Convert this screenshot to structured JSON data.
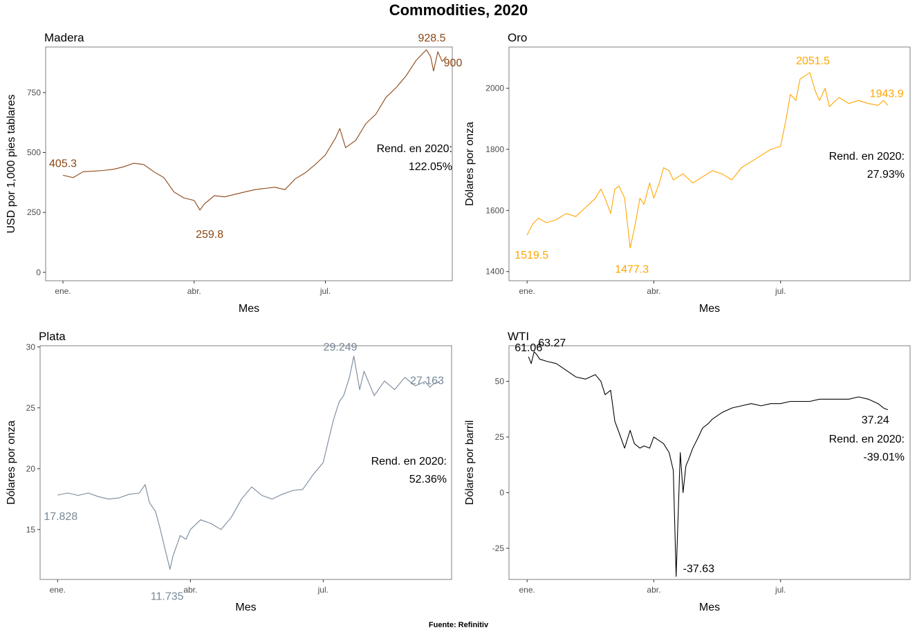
{
  "title": "Commodities, 2020",
  "source": "Fuente: Refinitiv",
  "chart_data": [
    {
      "type": "line",
      "title": "Madera",
      "xlabel": "Mes",
      "ylabel": "USD por 1,000 pies tablares",
      "color": "#8B4513",
      "x_ticks": [
        {
          "label": "ene.",
          "day": 0
        },
        {
          "label": "abr.",
          "day": 91
        },
        {
          "label": "jul.",
          "day": 182
        }
      ],
      "xlim": [
        -12,
        270
      ],
      "ylim": [
        -35,
        940
      ],
      "y_ticks": [
        0,
        250,
        500,
        750
      ],
      "series": [
        {
          "x": [
            0,
            7,
            14,
            21,
            28,
            35,
            42,
            49,
            56,
            63,
            70,
            77,
            84,
            91,
            95,
            98,
            105,
            112,
            119,
            126,
            133,
            140,
            147,
            154,
            161,
            168,
            175,
            182,
            189,
            192,
            196,
            203,
            208,
            210,
            217,
            224,
            231,
            238,
            245,
            252,
            255,
            257,
            260,
            263,
            266
          ],
          "values": [
            405.3,
            395,
            420,
            422,
            425,
            430,
            440,
            455,
            450,
            420,
            395,
            335,
            310,
            300,
            259.8,
            285,
            320,
            315,
            325,
            335,
            345,
            350,
            355,
            345,
            390,
            415,
            450,
            490,
            560,
            600,
            520,
            550,
            600,
            620,
            660,
            730,
            770,
            820,
            885,
            928.5,
            900,
            840,
            920,
            880,
            900
          ]
        }
      ],
      "annotations": [
        {
          "text": "405.3",
          "x": 0,
          "y": 405.3
        },
        {
          "text": "259.8",
          "x": 95,
          "y": 259.8
        },
        {
          "text": "928.5",
          "x": 252,
          "y": 928.5
        },
        {
          "text": "900",
          "x": 266,
          "y": 900
        }
      ],
      "rend_label": "Rend. en 2020:",
      "rend_value": "122.05%"
    },
    {
      "type": "line",
      "title": "Oro",
      "xlabel": "Mes",
      "ylabel": "Dólares por onza",
      "color": "#FFA500",
      "x_ticks": [
        {
          "label": "ene.",
          "day": 0
        },
        {
          "label": "abr.",
          "day": 91
        },
        {
          "label": "jul.",
          "day": 182
        }
      ],
      "xlim": [
        -13,
        275
      ],
      "ylim": [
        1370,
        2135
      ],
      "y_ticks": [
        1400,
        1600,
        1800,
        2000
      ],
      "series": [
        {
          "x": [
            0,
            4,
            8,
            14,
            21,
            28,
            35,
            42,
            49,
            53,
            56,
            60,
            63,
            66,
            70,
            74,
            77,
            81,
            84,
            88,
            91,
            95,
            98,
            102,
            105,
            112,
            119,
            126,
            133,
            140,
            147,
            154,
            161,
            168,
            175,
            182,
            186,
            189,
            193,
            196,
            203,
            207,
            210,
            214,
            217,
            224,
            231,
            238,
            245,
            252,
            256,
            259
          ],
          "values": [
            1519.5,
            1555,
            1575,
            1560,
            1570,
            1590,
            1580,
            1610,
            1640,
            1670,
            1640,
            1590,
            1670,
            1680,
            1640,
            1477.3,
            1540,
            1640,
            1620,
            1690,
            1640,
            1690,
            1740,
            1730,
            1700,
            1720,
            1690,
            1710,
            1730,
            1720,
            1700,
            1740,
            1760,
            1780,
            1800,
            1810,
            1900,
            1980,
            1960,
            2030,
            2051.5,
            1990,
            1960,
            2000,
            1940,
            1970,
            1950,
            1960,
            1950,
            1943.9,
            1960,
            1943.9
          ]
        }
      ],
      "annotations": [
        {
          "text": "1519.5",
          "x": 0,
          "y": 1519.5
        },
        {
          "text": "1477.3",
          "x": 74,
          "y": 1477.3
        },
        {
          "text": "2051.5",
          "x": 203,
          "y": 2051.5
        },
        {
          "text": "1943.9",
          "x": 252,
          "y": 1943.9
        }
      ],
      "rend_label": "Rend. en 2020:",
      "rend_value": "27.93%"
    },
    {
      "type": "line",
      "title": "Plata",
      "xlabel": "Mes",
      "ylabel": "Dólares por onza",
      "color": "#778899",
      "x_ticks": [
        {
          "label": "ene.",
          "day": 0
        },
        {
          "label": "abr.",
          "day": 91
        },
        {
          "label": "jul.",
          "day": 182
        }
      ],
      "xlim": [
        -12,
        270
      ],
      "ylim": [
        10.9,
        30.1
      ],
      "y_ticks": [
        15,
        20,
        25,
        30
      ],
      "series": [
        {
          "x": [
            0,
            7,
            14,
            21,
            28,
            35,
            42,
            49,
            56,
            60,
            63,
            67,
            70,
            74,
            77,
            79,
            84,
            88,
            91,
            98,
            105,
            112,
            119,
            126,
            133,
            140,
            147,
            154,
            161,
            168,
            175,
            182,
            189,
            193,
            196,
            200,
            203,
            207,
            210,
            217,
            224,
            231,
            238,
            245,
            252,
            255,
            258,
            262
          ],
          "values": [
            17.828,
            18.0,
            17.8,
            18.0,
            17.7,
            17.5,
            17.6,
            17.9,
            18.0,
            18.7,
            17.2,
            16.5,
            15.2,
            13.2,
            11.735,
            12.8,
            14.5,
            14.2,
            15.0,
            15.8,
            15.5,
            15.0,
            16.0,
            17.5,
            18.5,
            17.8,
            17.5,
            17.9,
            18.2,
            18.3,
            19.5,
            20.5,
            24.0,
            25.5,
            26.0,
            27.5,
            29.249,
            26.5,
            28.0,
            26.0,
            27.2,
            26.5,
            27.5,
            26.8,
            27.163,
            26.7,
            27.0,
            27.163
          ]
        }
      ],
      "annotations": [
        {
          "text": "17.828",
          "x": 0,
          "y": 17.828
        },
        {
          "text": "11.735",
          "x": 77,
          "y": 11.735
        },
        {
          "text": "29.249",
          "x": 203,
          "y": 29.249
        },
        {
          "text": "27.163",
          "x": 252,
          "y": 27.163
        }
      ],
      "rend_label": "Rend. en 2020:",
      "rend_value": "52.36%"
    },
    {
      "type": "line",
      "title": "WTI",
      "xlabel": "Mes",
      "ylabel": "Dólares por barril",
      "color": "#000000",
      "x_ticks": [
        {
          "label": "ene.",
          "day": 0
        },
        {
          "label": "abr.",
          "day": 91
        },
        {
          "label": "jul.",
          "day": 182
        }
      ],
      "xlim": [
        -13,
        275
      ],
      "ylim": [
        -39,
        66
      ],
      "y_ticks": [
        -25,
        0,
        25,
        50
      ],
      "series": [
        {
          "x": [
            1,
            3,
            5,
            7,
            9,
            14,
            21,
            28,
            35,
            42,
            49,
            53,
            56,
            60,
            63,
            66,
            70,
            74,
            77,
            81,
            84,
            88,
            91,
            98,
            102,
            105,
            107,
            109,
            110,
            112,
            114,
            116,
            119,
            123,
            126,
            130,
            133,
            140,
            147,
            154,
            161,
            168,
            175,
            182,
            189,
            196,
            203,
            210,
            217,
            224,
            231,
            238,
            245,
            252,
            256,
            259
          ],
          "values": [
            61.06,
            58,
            63.27,
            62,
            60,
            59,
            58,
            55,
            52,
            51,
            53,
            50,
            44,
            46,
            32,
            27,
            20,
            28,
            22,
            20,
            21,
            20,
            25,
            22,
            18,
            10,
            -37.63,
            0,
            18,
            0,
            12,
            15,
            20,
            25,
            29,
            31,
            33,
            36,
            38,
            39,
            40,
            39,
            40,
            40,
            41,
            41,
            41,
            42,
            42,
            42,
            42,
            43,
            42,
            40,
            38,
            37.24
          ]
        }
      ],
      "annotations": [
        {
          "text": "61.06",
          "x": 1,
          "y": 61.06
        },
        {
          "text": "63.27",
          "x": 5,
          "y": 63.27
        },
        {
          "text": "-37.63",
          "x": 107,
          "y": -37.63
        },
        {
          "text": "37.24",
          "x": 259,
          "y": 37.24
        }
      ],
      "rend_label": "Rend. en 2020:",
      "rend_value": "-39.01%"
    }
  ]
}
